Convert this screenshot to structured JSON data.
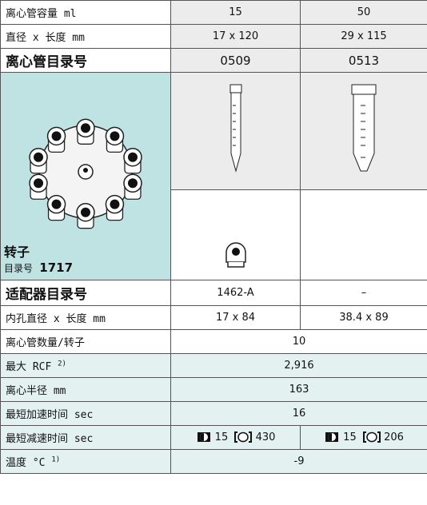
{
  "top_rows": [
    [
      "离心管容量 ml",
      "15",
      "50"
    ],
    [
      "直径 x 长度 mm",
      "17 x 120",
      "29 x 115"
    ],
    [
      "离心管目录号",
      "0509",
      "0513"
    ]
  ],
  "rotor": {
    "label": "转子",
    "catalog_label": "目录号",
    "catalog_number": "1717"
  },
  "adapter_rows": [
    [
      "适配器目录号",
      "1462-A",
      "–"
    ],
    [
      "内孔直径 x 长度 mm",
      "17 x 84",
      "38.4 x 89"
    ]
  ],
  "tube_count": [
    "离心管数量/转子",
    "10"
  ],
  "max_rcf": {
    "label": "最大 RCF",
    "note": "2)",
    "value": "2,916"
  },
  "radius": [
    "离心半径 mm",
    "163"
  ],
  "acceleration": [
    "最短加速时间 sec",
    "16"
  ],
  "deceleration": {
    "label": "最短减速时间 sec",
    "values": [
      [
        "15",
        "430"
      ],
      [
        "15",
        "206"
      ]
    ]
  },
  "temperature": {
    "label": "温度 °C",
    "note": "1)",
    "value": "-9"
  }
}
